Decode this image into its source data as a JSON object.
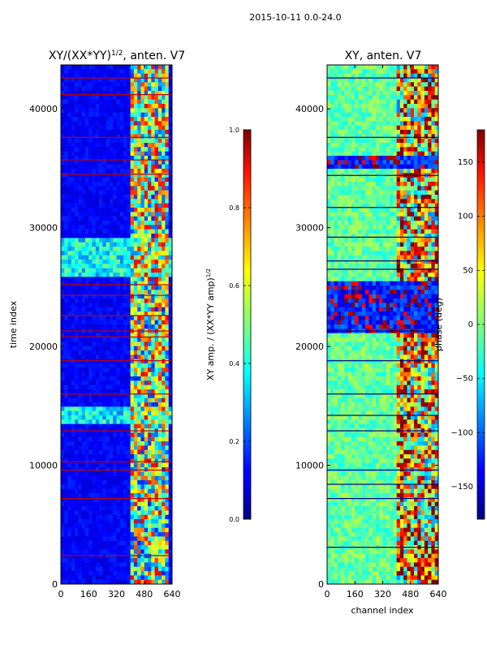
{
  "figure": {
    "suptitle": "2015-10-11 0.0-24.0"
  },
  "chart_data": [
    {
      "type": "heatmap",
      "title": "XY/(XX*YY)^1/2, anten. V7",
      "title_main": "XY/(XX*YY)",
      "title_sup": "1/2",
      "title_tail": ", anten. V7",
      "xlabel": "",
      "ylabel": "time index",
      "xlim": [
        0,
        640
      ],
      "ylim": [
        0,
        43700
      ],
      "xticks": [
        0,
        160,
        320,
        480,
        640
      ],
      "yticks": [
        0,
        10000,
        20000,
        30000,
        40000
      ],
      "colormap": "jet",
      "colorbar": {
        "label_main": "XY amp. / (XX*YY amp)",
        "label_sup": "1/2",
        "range": [
          0.0,
          1.0
        ],
        "ticks": [
          "0.0",
          "0.2",
          "0.4",
          "0.6",
          "0.8",
          "1.0"
        ]
      },
      "features": {
        "background_value": 0.08,
        "active_channel_band": [
          400,
          610
        ],
        "bright_bands_time": [
          [
            26000,
            29000
          ],
          [
            13500,
            15000
          ]
        ],
        "red_line_times": [
          2400,
          7200,
          9600,
          10300,
          12900,
          16000,
          18800,
          20800,
          21300,
          22600,
          24300,
          25200,
          34500,
          35700,
          37600,
          41200,
          42600
        ]
      }
    },
    {
      "type": "heatmap",
      "title": "XY, anten. V7",
      "xlabel": "channel index",
      "ylabel": "",
      "xlim": [
        0,
        640
      ],
      "ylim": [
        0,
        43700
      ],
      "xticks": [
        0,
        160,
        320,
        480,
        640
      ],
      "yticks": [
        0,
        10000,
        20000,
        30000,
        40000
      ],
      "colormap": "jet",
      "colorbar": {
        "label": "phase (deg)",
        "range": [
          -180,
          180
        ],
        "ticks": [
          "150",
          "100",
          "50",
          "0",
          "−50",
          "−100",
          "−150"
        ]
      },
      "features": {
        "background_value": -10,
        "active_channel_band": [
          400,
          640
        ],
        "dark_band_times": [
          [
            21000,
            25500
          ],
          [
            34800,
            36000
          ]
        ],
        "dark_line_times": [
          3100,
          7200,
          8400,
          9600,
          12900,
          14200,
          16000,
          18800,
          21300,
          26500,
          27200,
          29200,
          31700,
          34400,
          37600,
          42600
        ]
      }
    }
  ]
}
